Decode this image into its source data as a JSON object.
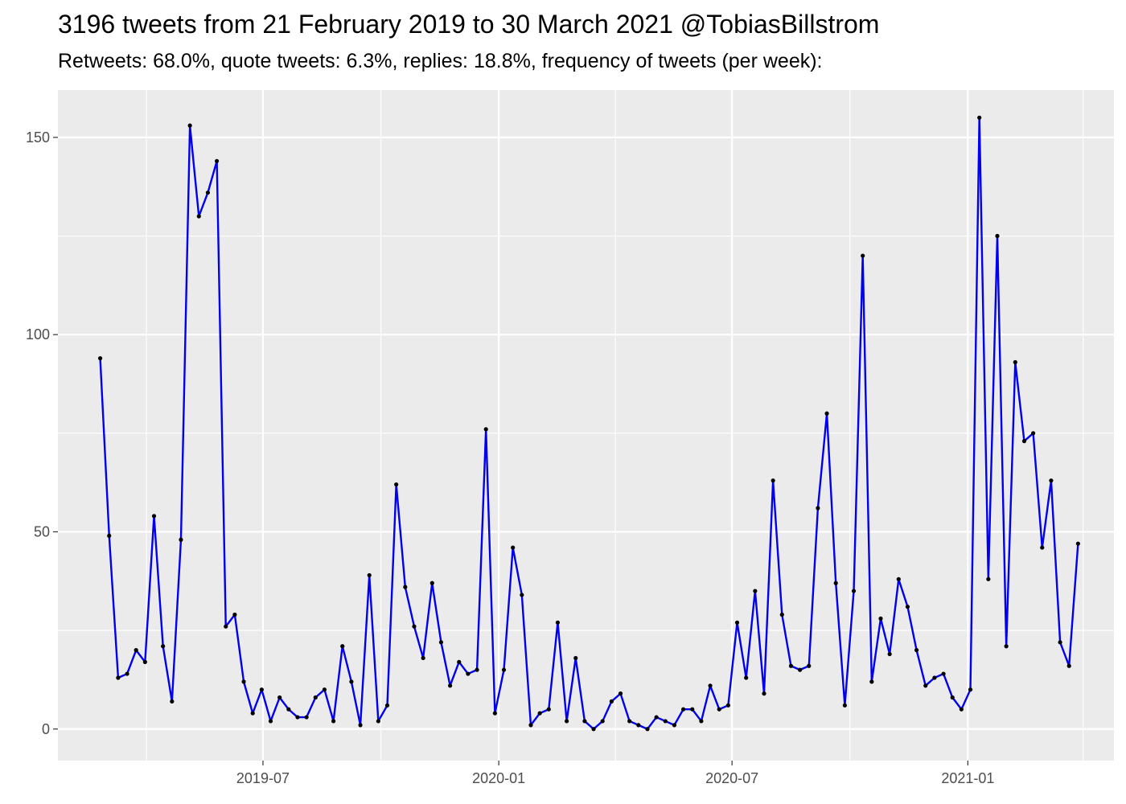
{
  "title": "3196 tweets from 21 February 2019 to 30 March 2021 @TobiasBillstrom",
  "subtitle": "Retweets: 68.0%, quote tweets: 6.3%, replies: 18.8%, frequency of tweets (per week):",
  "chart_data": {
    "type": "line",
    "title": "3196 tweets from 21 February 2019 to 30 March 2021 @TobiasBillstrom",
    "subtitle": "Retweets: 68.0%, quote tweets: 6.3%, replies: 18.8%, frequency of tweets (per week):",
    "xlabel": "",
    "ylabel": "",
    "x_start": "2019-02-24",
    "x_step_days": 7,
    "xlim": [
      "2019-01-22",
      "2021-04-25"
    ],
    "ylim": [
      -8,
      162
    ],
    "x_ticks": [
      "2019-07",
      "2020-01",
      "2020-07",
      "2021-01"
    ],
    "y_ticks": [
      0,
      50,
      100,
      150
    ],
    "grid": true,
    "line_color": "#0000ee",
    "point_color": "#000000",
    "panel_color": "#ebebeb",
    "values": [
      94,
      49,
      13,
      14,
      20,
      17,
      54,
      21,
      7,
      48,
      153,
      130,
      136,
      144,
      26,
      29,
      12,
      4,
      10,
      2,
      8,
      5,
      3,
      3,
      8,
      10,
      2,
      21,
      12,
      1,
      39,
      2,
      6,
      62,
      36,
      26,
      18,
      37,
      22,
      11,
      17,
      14,
      15,
      76,
      4,
      15,
      46,
      34,
      1,
      4,
      5,
      27,
      2,
      18,
      2,
      0,
      2,
      7,
      9,
      2,
      1,
      0,
      3,
      2,
      1,
      5,
      5,
      2,
      11,
      5,
      6,
      27,
      13,
      35,
      9,
      63,
      29,
      16,
      15,
      16,
      56,
      80,
      37,
      6,
      35,
      120,
      12,
      28,
      19,
      38,
      31,
      20,
      11,
      13,
      14,
      8,
      5,
      10,
      155,
      38,
      125,
      21,
      93,
      73,
      75,
      46,
      63,
      22,
      16,
      47
    ]
  }
}
